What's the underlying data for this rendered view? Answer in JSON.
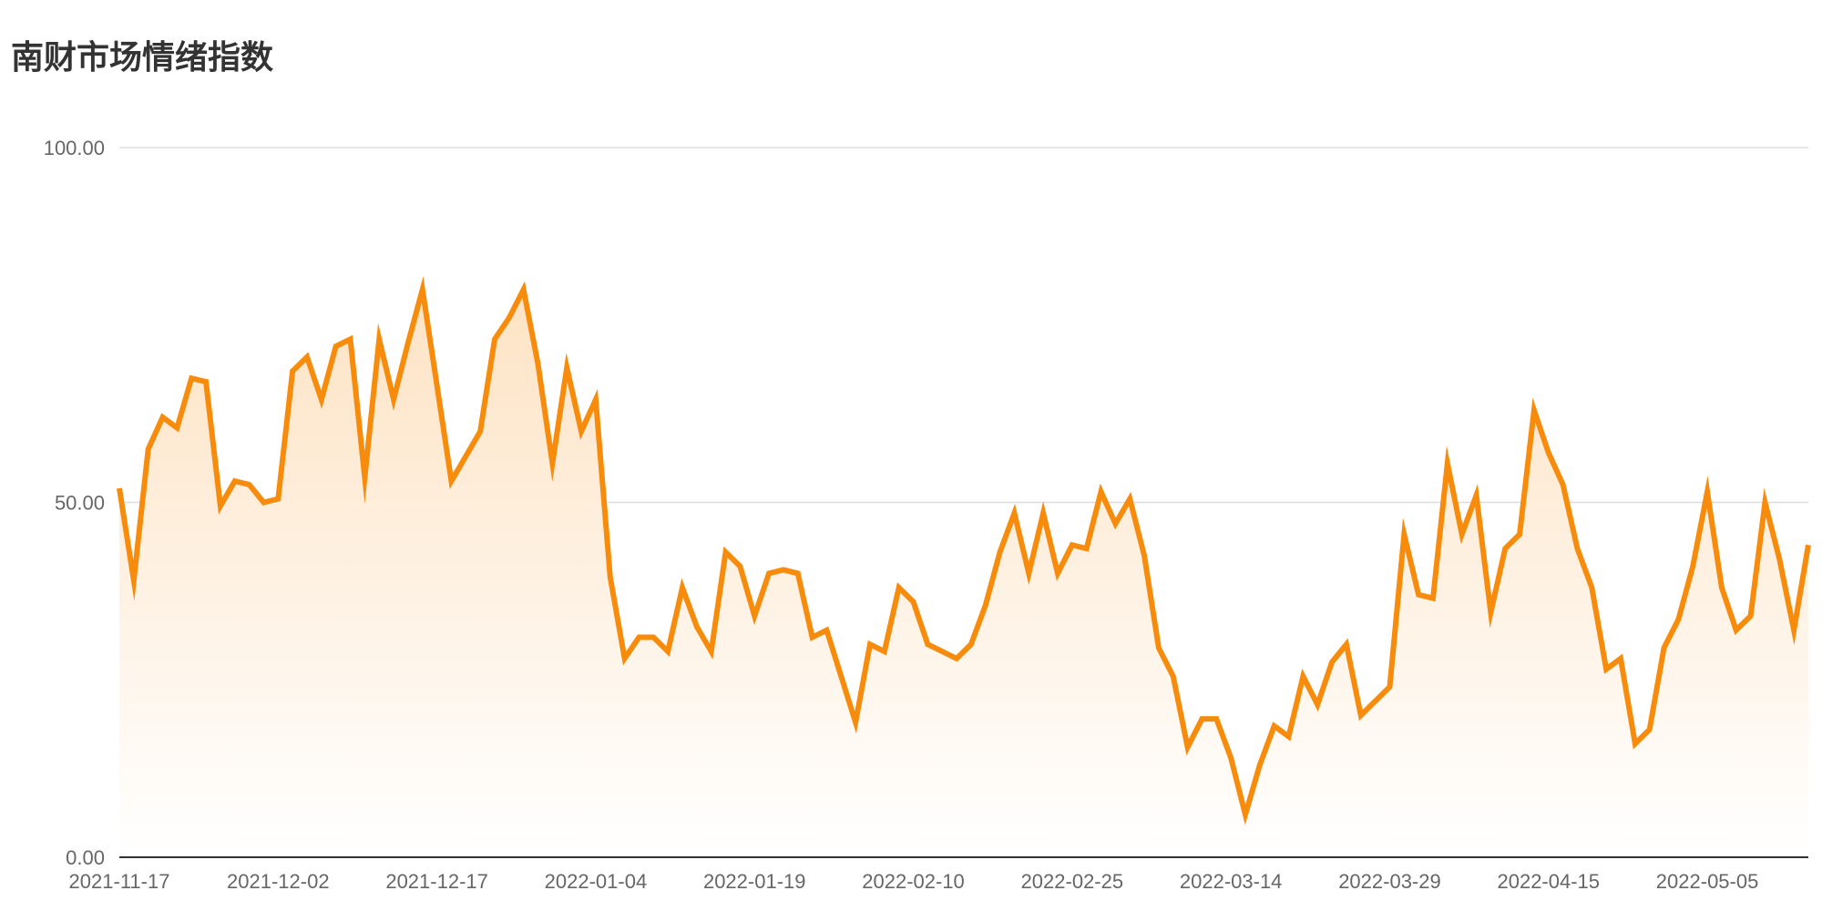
{
  "chart_data": {
    "type": "area",
    "title": "南财市场情绪指数",
    "xlabel": "",
    "ylabel": "",
    "ylim": [
      0,
      100
    ],
    "y_ticks": [
      "0.00",
      "50.00",
      "100.00"
    ],
    "y_tick_values": [
      0,
      50,
      100
    ],
    "x_tick_labels": [
      "2021-11-17",
      "2021-12-02",
      "2021-12-17",
      "2022-01-04",
      "2022-01-19",
      "2022-02-10",
      "2022-02-25",
      "2022-03-14",
      "2022-03-29",
      "2022-04-15",
      "2022-05-05"
    ],
    "x_tick_indices": [
      0,
      11,
      22,
      33,
      44,
      55,
      66,
      77,
      88,
      99,
      110
    ],
    "grid": true,
    "legend": "none",
    "series": [
      {
        "values": [
          52,
          39,
          57.5,
          62,
          60.5,
          67.5,
          67,
          49.5,
          53,
          52.5,
          50,
          50.5,
          68.5,
          70.5,
          64.5,
          72,
          73,
          53.5,
          73,
          64.5,
          72.5,
          80,
          66.5,
          53,
          56.5,
          60,
          73,
          76,
          80,
          69.5,
          55.5,
          69,
          60,
          64.5,
          39.5,
          28,
          31,
          31,
          29,
          38,
          32.5,
          29,
          43,
          41,
          34,
          40,
          40.5,
          40,
          31,
          32,
          25.5,
          19,
          30,
          29,
          38,
          36,
          30,
          29,
          28,
          30,
          35.5,
          43,
          48.5,
          40,
          48.5,
          40,
          44,
          43.5,
          51.5,
          47,
          50.5,
          42.5,
          29.5,
          25.5,
          15.5,
          19.5,
          19.5,
          14,
          6,
          13,
          18.5,
          17,
          25.5,
          21.5,
          27.5,
          30,
          20,
          22,
          24,
          45.5,
          37,
          36.5,
          55.5,
          45.5,
          51,
          34.5,
          43.5,
          45.5,
          63,
          57,
          52.5,
          43.5,
          38,
          26.5,
          28,
          16,
          18,
          29.5,
          33.5,
          41,
          51.5,
          38,
          32,
          34,
          50,
          42,
          32,
          44
        ]
      }
    ],
    "colors": {
      "line": "#f78c0c",
      "area_top": "#fde3c4",
      "area_bottom": "#ffffff",
      "grid": "#dddddd",
      "axis": "#333333"
    }
  }
}
